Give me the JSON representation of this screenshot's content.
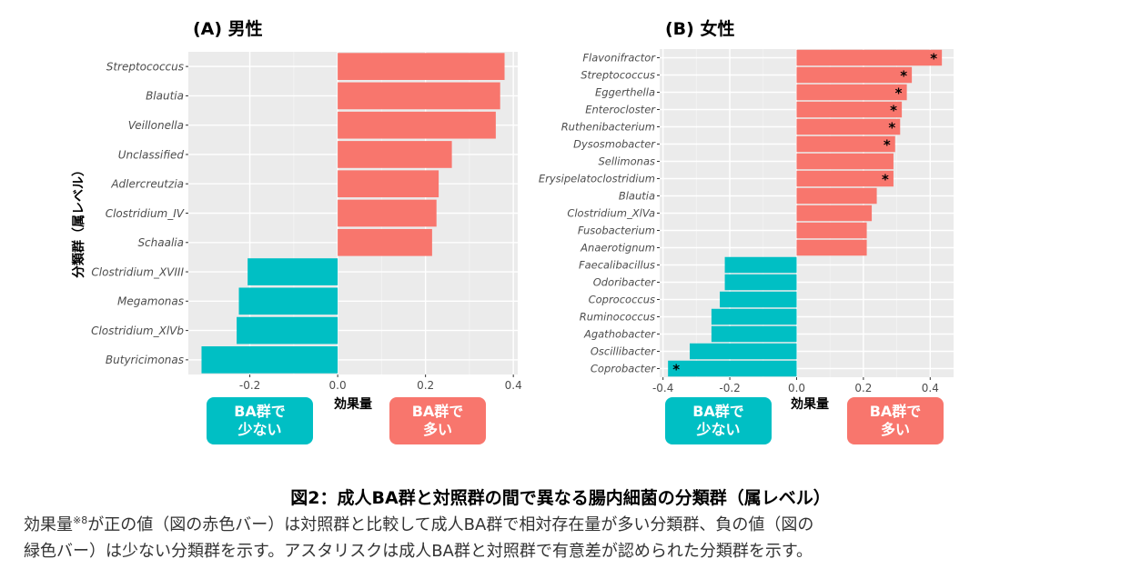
{
  "chart_data": [
    {
      "type": "bar",
      "orientation": "horizontal",
      "title": "(A) 男性",
      "xlabel": "効果量",
      "ylabel": "分類群（属レベル）",
      "xlim": [
        -0.34,
        0.41
      ],
      "xticks": [
        -0.2,
        0.0,
        0.2,
        0.4
      ],
      "xtick_labels": [
        "-0.2",
        "0.0",
        "0.2",
        "0.4"
      ],
      "categories": [
        "Streptococcus",
        "Blautia",
        "Veillonella",
        "Unclassified",
        "Adlercreutzia",
        "Clostridium_IV",
        "Schaalia",
        "Clostridium_XVIII",
        "Megamonas",
        "Clostridium_XlVb",
        "Butyricimonas"
      ],
      "values": [
        0.38,
        0.37,
        0.36,
        0.26,
        0.23,
        0.225,
        0.215,
        -0.205,
        -0.225,
        -0.23,
        -0.31
      ],
      "significant": [
        false,
        false,
        false,
        false,
        false,
        false,
        false,
        false,
        false,
        false,
        false
      ],
      "grid": true
    },
    {
      "type": "bar",
      "orientation": "horizontal",
      "title": "(B) 女性",
      "xlabel": "効果量",
      "ylabel": "",
      "xlim": [
        -0.41,
        0.47
      ],
      "xticks": [
        -0.4,
        -0.2,
        0.0,
        0.2,
        0.4
      ],
      "xtick_labels": [
        "-0.4",
        "-0.2",
        "0.0",
        "0.2",
        "0.4"
      ],
      "categories": [
        "Flavonifractor",
        "Streptococcus",
        "Eggerthella",
        "Enterocloster",
        "Ruthenibacterium",
        "Dysosmobacter",
        "Sellimonas",
        "Erysipelatoclostridium",
        "Blautia",
        "Clostridium_XlVa",
        "Fusobacterium",
        "Anaerotignum",
        "Faecalibacillus",
        "Odoribacter",
        "Coprococcus",
        "Ruminococcus",
        "Agathobacter",
        "Oscillibacter",
        "Coprobacter"
      ],
      "values": [
        0.435,
        0.345,
        0.33,
        0.315,
        0.31,
        0.295,
        0.29,
        0.29,
        0.24,
        0.225,
        0.21,
        0.21,
        -0.215,
        -0.215,
        -0.23,
        -0.255,
        -0.255,
        -0.32,
        -0.385
      ],
      "significant": [
        true,
        true,
        true,
        true,
        true,
        true,
        false,
        true,
        false,
        false,
        false,
        false,
        false,
        false,
        false,
        false,
        false,
        false,
        true
      ],
      "significance_marker": "*",
      "grid": true
    }
  ],
  "colors": {
    "positive": "#f8766d",
    "negative": "#00bfc4",
    "panel_bg": "#ebebeb",
    "grid_major": "#ffffff",
    "grid_minor": "#f4f4f4"
  },
  "legend": {
    "male": {
      "negative_line1": "BA群で",
      "negative_line2": "少ない",
      "positive_line1": "BA群で",
      "positive_line2": "多い"
    },
    "female": {
      "negative_line1": "BA群で",
      "negative_line2": "少ない",
      "positive_line1": "BA群で",
      "positive_line2": "多い"
    }
  },
  "caption": {
    "title": "図2：成人BA群と対照群の間で異なる腸内細菌の分類群（属レベル）",
    "line1_before": "効果量",
    "line1_sup": "※8",
    "line1_after": "が正の値（図の赤色バー）は対照群と比較して成人BA群で相対存在量が多い分類群、負の値（図の",
    "line2": "緑色バー）は少ない分類群を示す。アスタリスクは成人BA群と対照群で有意差が認められた分類群を示す。"
  }
}
